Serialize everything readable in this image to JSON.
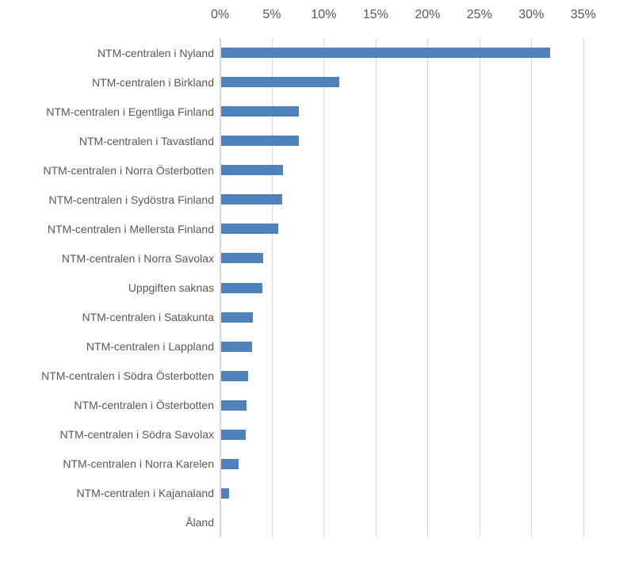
{
  "chart_data": {
    "type": "bar",
    "orientation": "horizontal",
    "title": "",
    "xlabel": "",
    "ylabel": "",
    "categories": [
      "NTM-centralen i Nyland",
      "NTM-centralen i Birkland",
      "NTM-centralen i Egentliga Finland",
      "NTM-centralen i Tavastland",
      "NTM-centralen i Norra Österbotten",
      "NTM-centralen i Sydöstra Finland",
      "NTM-centralen i Mellersta Finland",
      "NTM-centralen i Norra Savolax",
      "Uppgiften saknas",
      "NTM-centralen i Satakunta",
      "NTM-centralen i Lappland",
      "NTM-centralen i Södra Österbotten",
      "NTM-centralen i Österbotten",
      "NTM-centralen i Södra Savolax",
      "NTM-centralen i Norra Karelen",
      "NTM-centralen i Kajanaland",
      "Åland"
    ],
    "values": [
      31.7,
      11.4,
      7.5,
      7.5,
      6.0,
      5.9,
      5.5,
      4.1,
      4.0,
      3.1,
      3.0,
      2.6,
      2.5,
      2.4,
      1.7,
      0.8,
      0
    ],
    "unit": "%",
    "x_tick_labels": [
      "0%",
      "5%",
      "10%",
      "15%",
      "20%",
      "25%",
      "30%",
      "35%"
    ],
    "xlim": [
      0,
      35
    ],
    "grid": true,
    "legend": false,
    "axis_position": "top",
    "bar_color": "#4F81BD",
    "gridline_color": "#D9D9D9",
    "axis_line_color": "#D9D9D9",
    "text_color": "#595959",
    "background_color": "#FFFFFF"
  }
}
